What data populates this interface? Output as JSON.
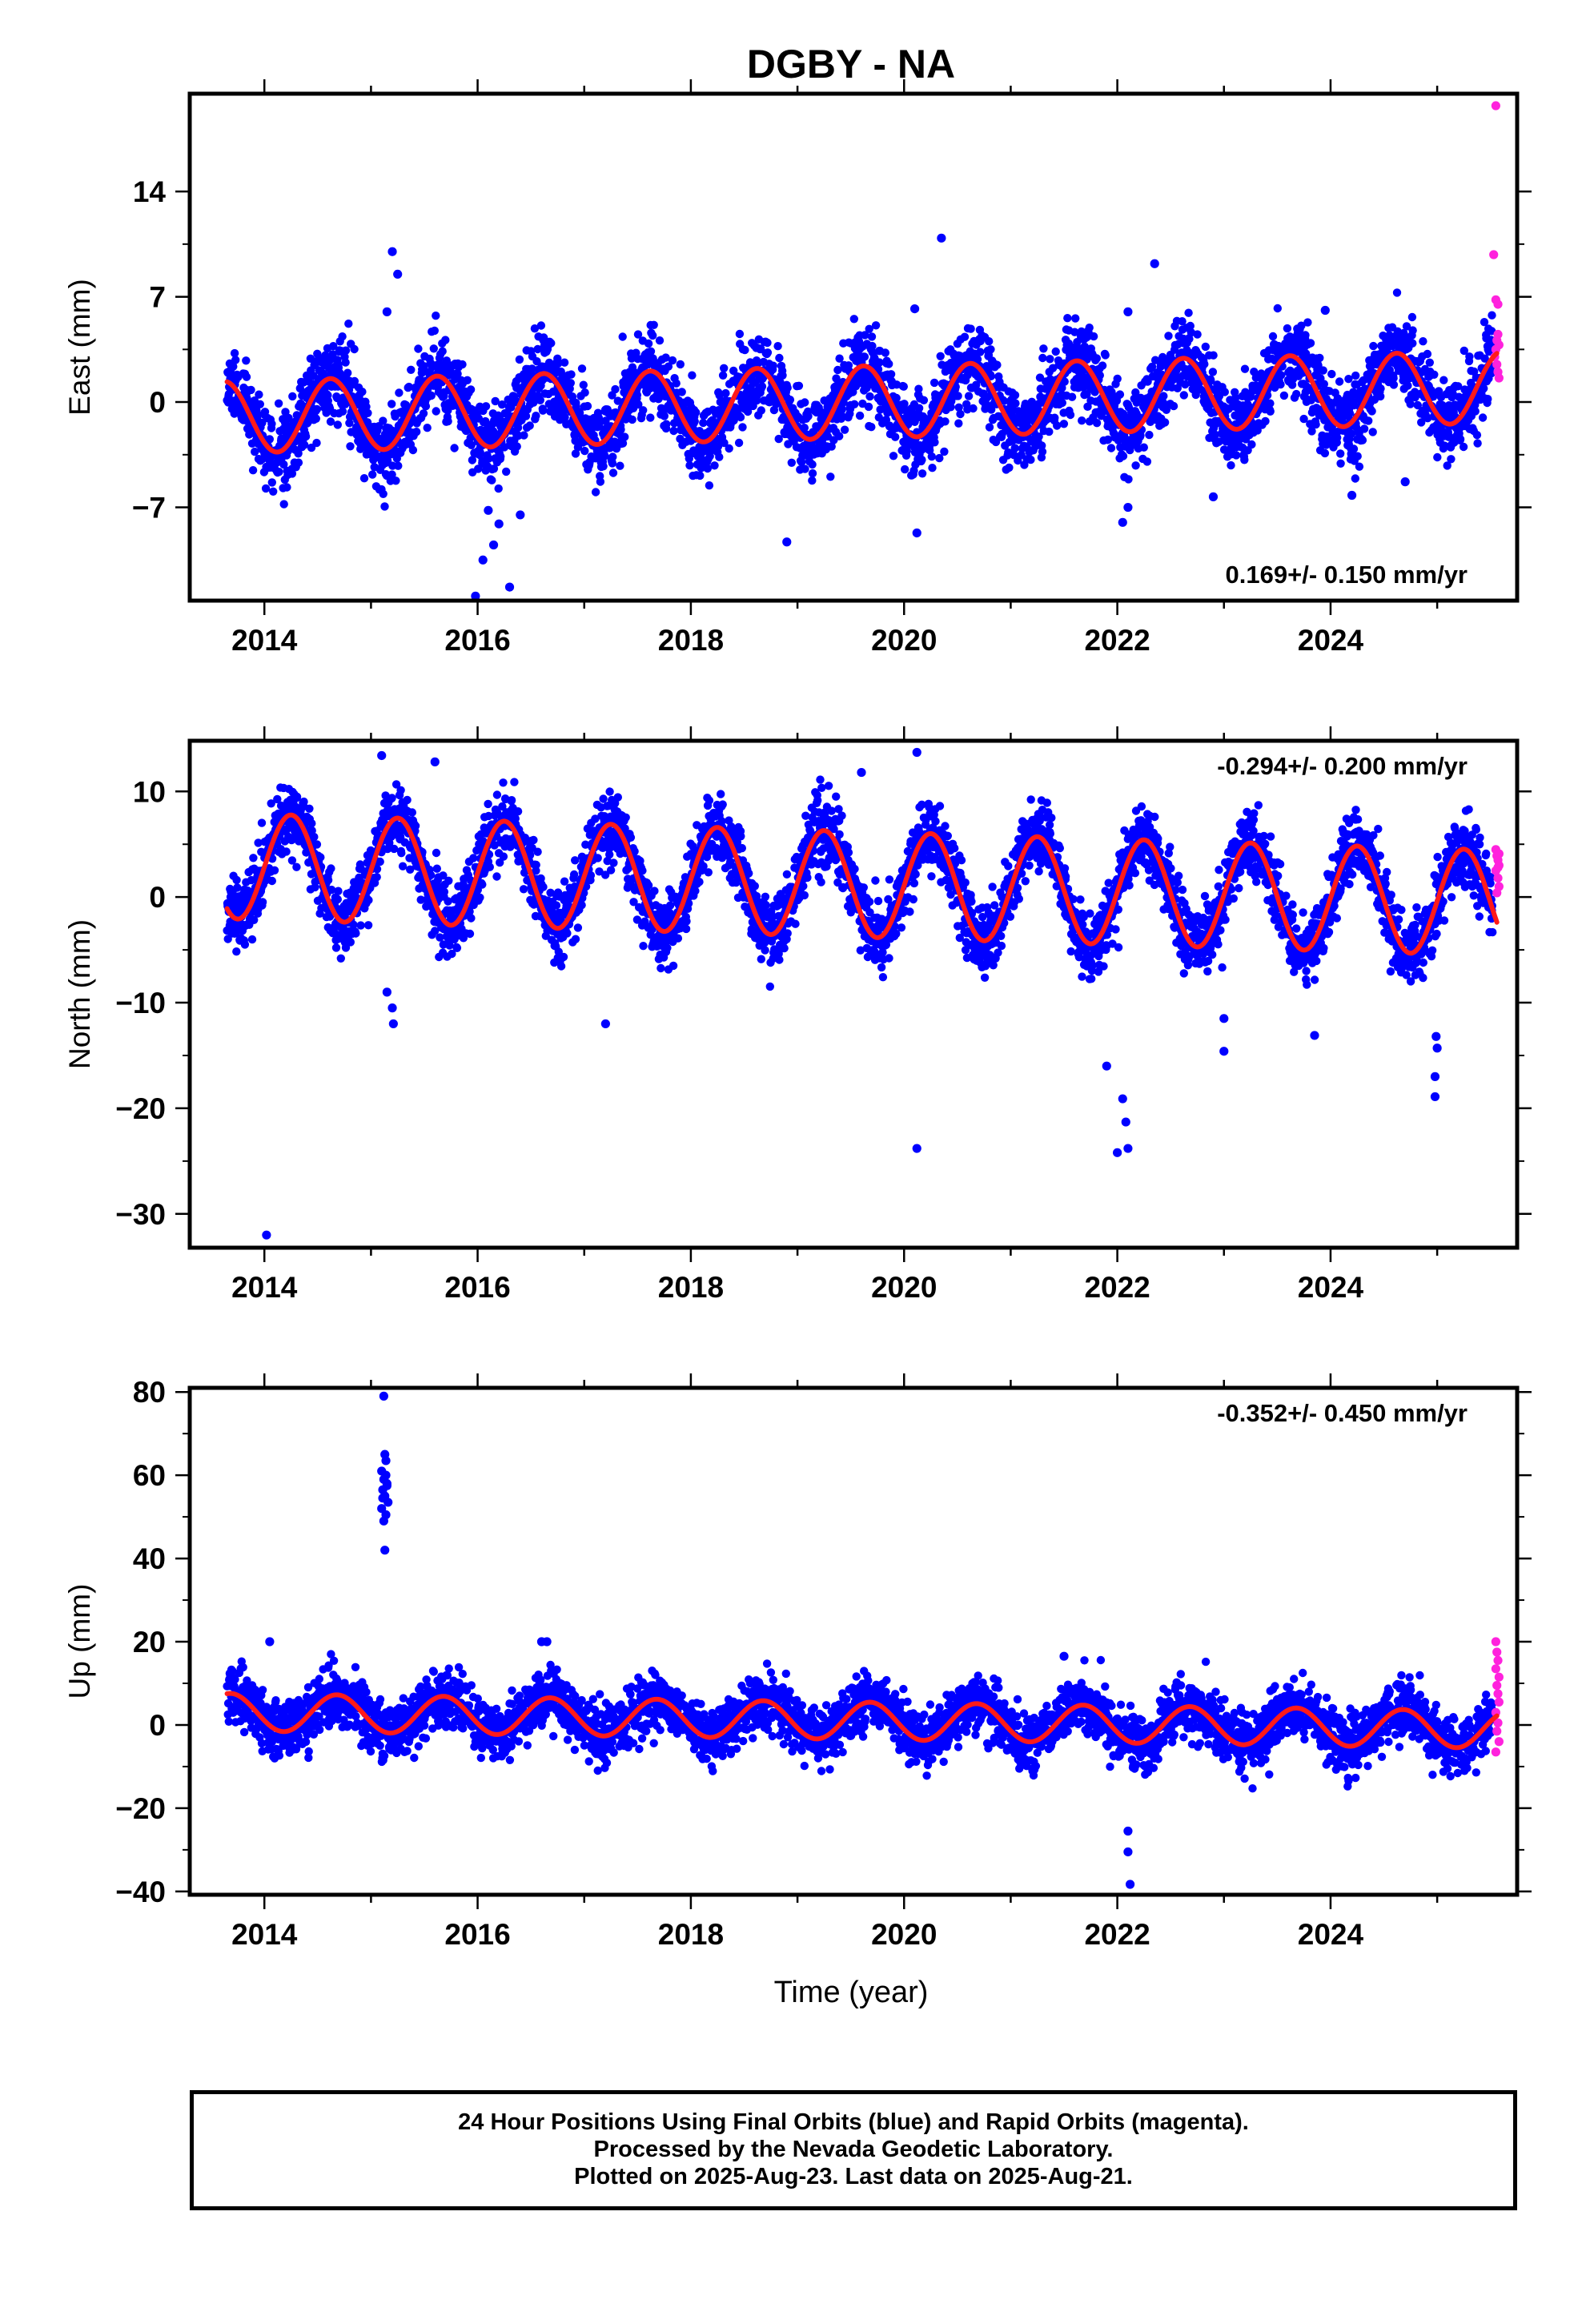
{
  "title": "DGBY - NA",
  "xlabel": "Time (year)",
  "footer": {
    "line1": "24 Hour Positions Using Final Orbits (blue) and Rapid Orbits (magenta).",
    "line2": "Processed by the Nevada Geodetic Laboratory.",
    "line3": "Plotted on 2025-Aug-23. Last data on 2025-Aug-21."
  },
  "colors": {
    "final": "#0000ff",
    "rapid": "#ff22dd",
    "model": "#ff1a1a",
    "axis": "#000000"
  },
  "chart_data": [
    {
      "type": "scatter",
      "component": "east",
      "ylabel": "East (mm)",
      "rate_text": "0.169+/- 0.150 mm/yr",
      "rate_position": "bottom-right",
      "xlim": [
        2013.3,
        2025.75
      ],
      "ylim": [
        -13.2,
        20.5
      ],
      "yticks": [
        -7,
        0,
        7,
        14
      ],
      "ytick_labels": [
        "−7",
        "0",
        "7",
        "14"
      ],
      "xticks": [
        2014,
        2016,
        2018,
        2020,
        2022,
        2024
      ],
      "grid": false,
      "model": {
        "mean": 0.0,
        "trend_mm_per_yr": 0.169,
        "annual_amplitude": 2.4,
        "annual_phase_year_fraction": 0.62,
        "t0": 2019.6
      },
      "scatter_noise": 1.3,
      "seed": 11,
      "outliers": [
        [
          2015.2,
          10.0
        ],
        [
          2015.25,
          8.5
        ],
        [
          2015.15,
          6.0
        ],
        [
          2015.98,
          -12.9
        ],
        [
          2016.05,
          -10.5
        ],
        [
          2016.15,
          -9.5
        ],
        [
          2016.3,
          -12.3
        ],
        [
          2016.4,
          -7.5
        ],
        [
          2016.2,
          -8.1
        ],
        [
          2016.1,
          -7.2
        ],
        [
          2018.9,
          -9.3
        ],
        [
          2020.1,
          6.2
        ],
        [
          2020.35,
          10.9
        ],
        [
          2020.12,
          -8.7
        ],
        [
          2022.35,
          9.2
        ],
        [
          2022.05,
          -8.0
        ],
        [
          2022.1,
          -7.0
        ],
        [
          2022.1,
          6.0
        ],
        [
          2023.95,
          6.1
        ],
        [
          2024.2,
          -6.2
        ],
        [
          2024.7,
          -5.3
        ],
        [
          2022.9,
          -6.3
        ]
      ],
      "rapid": [
        [
          2025.55,
          19.7
        ],
        [
          2025.53,
          9.8
        ],
        [
          2025.55,
          6.8
        ],
        [
          2025.57,
          4.5
        ],
        [
          2025.56,
          4.1
        ],
        [
          2025.58,
          3.8
        ],
        [
          2025.54,
          3.0
        ],
        [
          2025.56,
          2.5
        ],
        [
          2025.57,
          2.0
        ],
        [
          2025.58,
          1.6
        ],
        [
          2025.55,
          3.5
        ],
        [
          2025.57,
          6.5
        ]
      ]
    },
    {
      "type": "scatter",
      "component": "north",
      "ylabel": "North (mm)",
      "rate_text": "-0.294+/- 0.200 mm/yr",
      "rate_position": "top-right",
      "xlim": [
        2013.3,
        2025.75
      ],
      "ylim": [
        -33.2,
        14.8
      ],
      "yticks": [
        -30,
        -20,
        -10,
        0,
        10
      ],
      "ytick_labels": [
        "−30",
        "−20",
        "−10",
        "0",
        "10"
      ],
      "xticks": [
        2014,
        2016,
        2018,
        2020,
        2022,
        2024
      ],
      "grid": false,
      "model": {
        "mean": 1.2,
        "trend_mm_per_yr": -0.294,
        "annual_amplitude": 5.0,
        "annual_phase_year_fraction": 0.25,
        "t0": 2019.6
      },
      "scatter_noise": 1.6,
      "seed": 23,
      "outliers": [
        [
          2014.02,
          -32.0
        ],
        [
          2015.1,
          13.4
        ],
        [
          2015.6,
          12.8
        ],
        [
          2015.2,
          -10.5
        ],
        [
          2015.21,
          -12.0
        ],
        [
          2015.15,
          -9.0
        ],
        [
          2017.2,
          -12.0
        ],
        [
          2019.6,
          11.8
        ],
        [
          2020.12,
          13.7
        ],
        [
          2020.12,
          -23.8
        ],
        [
          2021.9,
          -16.0
        ],
        [
          2022.0,
          -24.2
        ],
        [
          2022.05,
          -19.1
        ],
        [
          2022.08,
          -21.3
        ],
        [
          2022.1,
          -23.8
        ],
        [
          2023.0,
          -14.6
        ],
        [
          2023.0,
          -11.5
        ],
        [
          2023.85,
          -13.1
        ],
        [
          2024.98,
          -18.9
        ],
        [
          2024.98,
          -17.0
        ],
        [
          2024.99,
          -13.2
        ],
        [
          2025.0,
          -14.3
        ]
      ],
      "rapid": [
        [
          2025.55,
          4.5
        ],
        [
          2025.56,
          3.9
        ],
        [
          2025.57,
          3.5
        ],
        [
          2025.58,
          3.0
        ],
        [
          2025.55,
          2.5
        ],
        [
          2025.57,
          1.8
        ],
        [
          2025.58,
          1.0
        ],
        [
          2025.56,
          0.4
        ],
        [
          2025.57,
          2.8
        ],
        [
          2025.58,
          4.1
        ]
      ]
    },
    {
      "type": "scatter",
      "component": "up",
      "ylabel": "Up (mm)",
      "rate_text": "-0.352+/- 0.450 mm/yr",
      "rate_position": "top-right",
      "xlim": [
        2013.3,
        2025.75
      ],
      "ylim": [
        -40.8,
        81.0
      ],
      "yticks": [
        -40,
        -20,
        0,
        20,
        40,
        60,
        80
      ],
      "ytick_labels": [
        "−40",
        "−20",
        "0",
        "20",
        "40",
        "60",
        "80"
      ],
      "xticks": [
        2014,
        2016,
        2018,
        2020,
        2022,
        2024
      ],
      "grid": false,
      "model": {
        "mean": 1.0,
        "trend_mm_per_yr": -0.352,
        "annual_amplitude": 4.5,
        "annual_phase_year_fraction": 0.68,
        "t0": 2019.6
      },
      "scatter_noise": 3.3,
      "seed": 37,
      "outliers": [
        [
          2015.12,
          79.0
        ],
        [
          2015.13,
          65.0
        ],
        [
          2015.14,
          63.5
        ],
        [
          2015.1,
          61.0
        ],
        [
          2015.12,
          59.0
        ],
        [
          2015.15,
          58.0
        ],
        [
          2015.11,
          56.5
        ],
        [
          2015.13,
          55.0
        ],
        [
          2015.16,
          53.5
        ],
        [
          2015.1,
          52.0
        ],
        [
          2015.14,
          50.5
        ],
        [
          2015.12,
          49.0
        ],
        [
          2015.13,
          42.0
        ],
        [
          2015.15,
          57.5
        ],
        [
          2015.11,
          54.5
        ],
        [
          2015.14,
          60.0
        ],
        [
          2016.6,
          20.0
        ],
        [
          2016.65,
          20.0
        ],
        [
          2014.05,
          20.0
        ],
        [
          2022.1,
          -25.5
        ],
        [
          2022.1,
          -30.5
        ],
        [
          2022.12,
          -38.3
        ],
        [
          2021.5,
          16.5
        ]
      ],
      "rapid": [
        [
          2025.55,
          20.0
        ],
        [
          2025.56,
          17.5
        ],
        [
          2025.57,
          15.5
        ],
        [
          2025.55,
          13.5
        ],
        [
          2025.58,
          11.5
        ],
        [
          2025.56,
          9.5
        ],
        [
          2025.57,
          7.5
        ],
        [
          2025.58,
          5.5
        ],
        [
          2025.55,
          3.0
        ],
        [
          2025.57,
          0.5
        ],
        [
          2025.56,
          -1.5
        ],
        [
          2025.58,
          -4.0
        ],
        [
          2025.55,
          -6.5
        ]
      ]
    }
  ]
}
